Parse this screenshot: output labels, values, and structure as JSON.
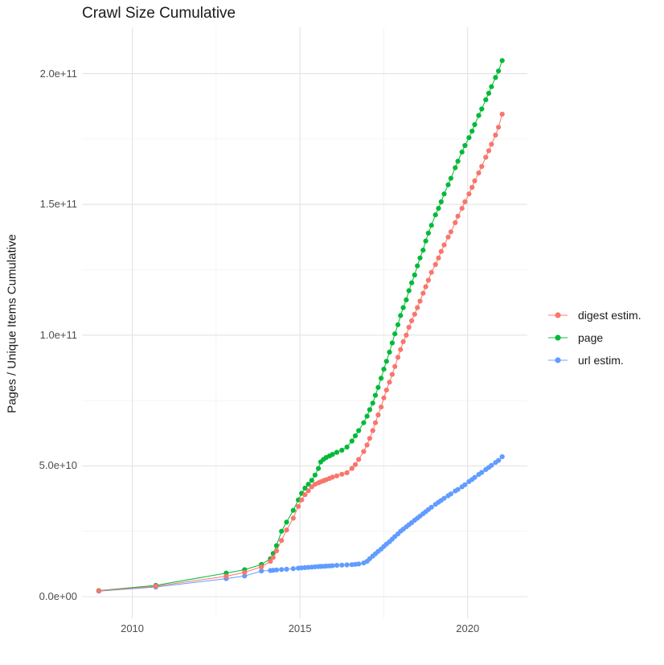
{
  "page": {
    "title": "Crawl Size Cumulative"
  },
  "chart_data": {
    "type": "line",
    "title": "Crawl Size Cumulative",
    "xlabel": "",
    "ylabel": "Pages / Unique Items Cumulative",
    "y_unit": "absolute value = shown value; series values below are in billions (1e9)",
    "xlim": [
      2008.5,
      2021.78
    ],
    "ylim": [
      -8.3,
      217.7
    ],
    "grid": true,
    "legend_position": "right-center",
    "x_ticks": [
      {
        "value": 2010,
        "label": "2010"
      },
      {
        "value": 2015,
        "label": "2015"
      },
      {
        "value": 2020,
        "label": "2020"
      }
    ],
    "x_minor_ticks": [
      2012.5,
      2017.5
    ],
    "y_ticks": [
      {
        "value": 0,
        "label": "0.0e+00"
      },
      {
        "value": 50,
        "label": "5.0e+10"
      },
      {
        "value": 100,
        "label": "1.0e+11"
      },
      {
        "value": 150,
        "label": "1.5e+11"
      },
      {
        "value": 200,
        "label": "2.0e+11"
      }
    ],
    "y_minor_ticks": [
      25,
      75,
      125,
      175
    ],
    "legend": {
      "items": [
        {
          "label": "digest estim.",
          "color": "#F8766D"
        },
        {
          "label": "page",
          "color": "#00BA38"
        },
        {
          "label": "url estim.",
          "color": "#619CFF"
        }
      ]
    },
    "series": [
      {
        "name": "page",
        "color": "#00BA38",
        "points": [
          [
            2009.0,
            2.3
          ],
          [
            2010.7,
            4.3
          ],
          [
            2012.8,
            9.0
          ],
          [
            2013.35,
            10.3
          ],
          [
            2013.85,
            12.3
          ],
          [
            2014.12,
            14.5
          ],
          [
            2014.2,
            16.5
          ],
          [
            2014.3,
            19.5
          ],
          [
            2014.45,
            25.0
          ],
          [
            2014.6,
            28.5
          ],
          [
            2014.8,
            33.0
          ],
          [
            2014.95,
            37.0
          ],
          [
            2015.05,
            39.5
          ],
          [
            2015.15,
            41.5
          ],
          [
            2015.25,
            43.0
          ],
          [
            2015.35,
            44.5
          ],
          [
            2015.45,
            46.5
          ],
          [
            2015.55,
            49.0
          ],
          [
            2015.62,
            51.5
          ],
          [
            2015.7,
            52.5
          ],
          [
            2015.78,
            53.2
          ],
          [
            2015.88,
            53.8
          ],
          [
            2015.97,
            54.4
          ],
          [
            2016.1,
            55.2
          ],
          [
            2016.25,
            56.0
          ],
          [
            2016.4,
            57.2
          ],
          [
            2016.55,
            59.5
          ],
          [
            2016.65,
            61.5
          ],
          [
            2016.75,
            63.5
          ],
          [
            2016.9,
            66.5
          ],
          [
            2017.0,
            69.0
          ],
          [
            2017.08,
            71.5
          ],
          [
            2017.17,
            74.0
          ],
          [
            2017.25,
            77.0
          ],
          [
            2017.33,
            80.0
          ],
          [
            2017.42,
            83.5
          ],
          [
            2017.5,
            87.0
          ],
          [
            2017.58,
            90.0
          ],
          [
            2017.67,
            93.5
          ],
          [
            2017.75,
            97.0
          ],
          [
            2017.83,
            100.5
          ],
          [
            2017.92,
            104.0
          ],
          [
            2018.0,
            107.5
          ],
          [
            2018.08,
            110.5
          ],
          [
            2018.17,
            113.5
          ],
          [
            2018.25,
            117.0
          ],
          [
            2018.33,
            120.0
          ],
          [
            2018.42,
            123.0
          ],
          [
            2018.5,
            126.5
          ],
          [
            2018.58,
            129.5
          ],
          [
            2018.67,
            132.5
          ],
          [
            2018.75,
            136.0
          ],
          [
            2018.83,
            139.0
          ],
          [
            2018.92,
            142.0
          ],
          [
            2019.04,
            146.0
          ],
          [
            2019.13,
            148.5
          ],
          [
            2019.21,
            151.0
          ],
          [
            2019.3,
            154.0
          ],
          [
            2019.42,
            157.5
          ],
          [
            2019.5,
            160.0
          ],
          [
            2019.63,
            164.0
          ],
          [
            2019.71,
            166.5
          ],
          [
            2019.83,
            170.0
          ],
          [
            2019.92,
            172.5
          ],
          [
            2020.04,
            175.5
          ],
          [
            2020.13,
            178.0
          ],
          [
            2020.21,
            180.5
          ],
          [
            2020.33,
            184.0
          ],
          [
            2020.42,
            186.5
          ],
          [
            2020.54,
            190.0
          ],
          [
            2020.63,
            192.5
          ],
          [
            2020.71,
            195.0
          ],
          [
            2020.83,
            198.5
          ],
          [
            2020.92,
            201.0
          ],
          [
            2021.03,
            205.0
          ]
        ]
      },
      {
        "name": "url estim.",
        "color": "#619CFF",
        "points": [
          [
            2009.0,
            2.1
          ],
          [
            2010.7,
            3.7
          ],
          [
            2012.8,
            6.9
          ],
          [
            2013.35,
            7.9
          ],
          [
            2013.85,
            9.8
          ],
          [
            2014.12,
            10.0
          ],
          [
            2014.2,
            10.1
          ],
          [
            2014.3,
            10.2
          ],
          [
            2014.45,
            10.35
          ],
          [
            2014.6,
            10.5
          ],
          [
            2014.8,
            10.7
          ],
          [
            2014.95,
            10.9
          ],
          [
            2015.05,
            11.0
          ],
          [
            2015.15,
            11.1
          ],
          [
            2015.25,
            11.2
          ],
          [
            2015.35,
            11.3
          ],
          [
            2015.45,
            11.4
          ],
          [
            2015.55,
            11.5
          ],
          [
            2015.62,
            11.55
          ],
          [
            2015.7,
            11.6
          ],
          [
            2015.78,
            11.7
          ],
          [
            2015.88,
            11.75
          ],
          [
            2015.97,
            11.85
          ],
          [
            2016.1,
            11.95
          ],
          [
            2016.25,
            12.05
          ],
          [
            2016.4,
            12.15
          ],
          [
            2016.55,
            12.25
          ],
          [
            2016.65,
            12.35
          ],
          [
            2016.75,
            12.5
          ],
          [
            2016.9,
            12.9
          ],
          [
            2017.0,
            13.5
          ],
          [
            2017.08,
            14.5
          ],
          [
            2017.17,
            15.5
          ],
          [
            2017.25,
            16.4
          ],
          [
            2017.33,
            17.3
          ],
          [
            2017.42,
            18.2
          ],
          [
            2017.5,
            19.2
          ],
          [
            2017.58,
            20.1
          ],
          [
            2017.67,
            21.0
          ],
          [
            2017.75,
            22.0
          ],
          [
            2017.83,
            23.0
          ],
          [
            2017.92,
            24.0
          ],
          [
            2018.0,
            25.0
          ],
          [
            2018.08,
            25.8
          ],
          [
            2018.17,
            26.7
          ],
          [
            2018.25,
            27.5
          ],
          [
            2018.33,
            28.3
          ],
          [
            2018.42,
            29.2
          ],
          [
            2018.5,
            30.0
          ],
          [
            2018.58,
            30.8
          ],
          [
            2018.67,
            31.7
          ],
          [
            2018.75,
            32.5
          ],
          [
            2018.83,
            33.3
          ],
          [
            2018.92,
            34.2
          ],
          [
            2019.04,
            35.3
          ],
          [
            2019.13,
            36.1
          ],
          [
            2019.21,
            36.8
          ],
          [
            2019.3,
            37.6
          ],
          [
            2019.42,
            38.6
          ],
          [
            2019.5,
            39.3
          ],
          [
            2019.63,
            40.4
          ],
          [
            2019.71,
            41.0
          ],
          [
            2019.83,
            42.0
          ],
          [
            2019.92,
            42.8
          ],
          [
            2020.04,
            44.0
          ],
          [
            2020.13,
            44.8
          ],
          [
            2020.21,
            45.6
          ],
          [
            2020.33,
            46.7
          ],
          [
            2020.42,
            47.5
          ],
          [
            2020.54,
            48.6
          ],
          [
            2020.63,
            49.4
          ],
          [
            2020.71,
            50.2
          ],
          [
            2020.83,
            51.3
          ],
          [
            2020.92,
            52.1
          ],
          [
            2021.03,
            53.5
          ]
        ]
      },
      {
        "name": "digest estim.",
        "color": "#F8766D",
        "points": [
          [
            2009.0,
            2.2
          ],
          [
            2010.7,
            4.0
          ],
          [
            2012.8,
            7.8
          ],
          [
            2013.35,
            9.3
          ],
          [
            2013.85,
            11.4
          ],
          [
            2014.12,
            13.5
          ],
          [
            2014.2,
            15.0
          ],
          [
            2014.3,
            17.5
          ],
          [
            2014.45,
            21.5
          ],
          [
            2014.6,
            25.5
          ],
          [
            2014.8,
            30.0
          ],
          [
            2014.95,
            34.5
          ],
          [
            2015.05,
            37.0
          ],
          [
            2015.15,
            39.0
          ],
          [
            2015.25,
            40.5
          ],
          [
            2015.35,
            42.0
          ],
          [
            2015.45,
            43.0
          ],
          [
            2015.55,
            43.5
          ],
          [
            2015.62,
            43.9
          ],
          [
            2015.7,
            44.3
          ],
          [
            2015.78,
            44.7
          ],
          [
            2015.88,
            45.2
          ],
          [
            2015.97,
            45.7
          ],
          [
            2016.1,
            46.2
          ],
          [
            2016.25,
            46.8
          ],
          [
            2016.4,
            47.4
          ],
          [
            2016.55,
            49.0
          ],
          [
            2016.65,
            50.5
          ],
          [
            2016.75,
            52.5
          ],
          [
            2016.9,
            55.5
          ],
          [
            2017.0,
            58.0
          ],
          [
            2017.08,
            60.5
          ],
          [
            2017.17,
            63.5
          ],
          [
            2017.25,
            66.5
          ],
          [
            2017.33,
            69.5
          ],
          [
            2017.42,
            72.5
          ],
          [
            2017.5,
            76.0
          ],
          [
            2017.58,
            79.0
          ],
          [
            2017.67,
            82.0
          ],
          [
            2017.75,
            85.0
          ],
          [
            2017.83,
            88.0
          ],
          [
            2017.92,
            91.5
          ],
          [
            2018.0,
            94.5
          ],
          [
            2018.08,
            97.5
          ],
          [
            2018.17,
            100.0
          ],
          [
            2018.25,
            103.0
          ],
          [
            2018.33,
            105.5
          ],
          [
            2018.42,
            108.0
          ],
          [
            2018.5,
            110.5
          ],
          [
            2018.58,
            113.0
          ],
          [
            2018.67,
            116.0
          ],
          [
            2018.75,
            118.5
          ],
          [
            2018.83,
            121.0
          ],
          [
            2018.92,
            124.0
          ],
          [
            2019.04,
            127.0
          ],
          [
            2019.13,
            129.5
          ],
          [
            2019.21,
            132.0
          ],
          [
            2019.3,
            134.5
          ],
          [
            2019.42,
            137.5
          ],
          [
            2019.5,
            139.5
          ],
          [
            2019.63,
            143.0
          ],
          [
            2019.71,
            145.5
          ],
          [
            2019.83,
            148.5
          ],
          [
            2019.92,
            151.0
          ],
          [
            2020.04,
            154.0
          ],
          [
            2020.13,
            156.5
          ],
          [
            2020.21,
            159.0
          ],
          [
            2020.33,
            162.0
          ],
          [
            2020.42,
            164.5
          ],
          [
            2020.54,
            168.0
          ],
          [
            2020.63,
            170.5
          ],
          [
            2020.71,
            173.0
          ],
          [
            2020.83,
            176.5
          ],
          [
            2020.92,
            179.5
          ],
          [
            2021.03,
            184.5
          ]
        ]
      }
    ]
  }
}
